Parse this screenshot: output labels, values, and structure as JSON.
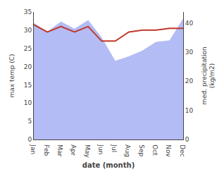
{
  "chart_data": {
    "type": "line",
    "categories": [
      "Jan",
      "Feb",
      "Mar",
      "Apr",
      "May",
      "Jun",
      "Jul",
      "Aug",
      "Sep",
      "Oct",
      "Nov",
      "Dec"
    ],
    "series": [
      {
        "type": "area",
        "axis": "y2",
        "color": "#b3bcf5",
        "values": [
          40.0,
          37.0,
          40.5,
          38.0,
          41.0,
          35.0,
          27.0,
          28.5,
          30.5,
          33.5,
          34.0,
          41.5
        ]
      },
      {
        "type": "line",
        "color": "#c0392b",
        "values": [
          31.5,
          29.5,
          31.0,
          29.5,
          31.0,
          27.0,
          27.0,
          29.5,
          30.0,
          30.0,
          30.5,
          30.5
        ]
      }
    ],
    "xlabel": "date (month)",
    "ylabel": "max temp (C)",
    "y2label": "med. precipitation\n(kg/m2)",
    "ylim": [
      0,
      35
    ],
    "yticks": [
      0,
      5,
      10,
      15,
      20,
      25,
      30,
      35
    ],
    "y2lim": [
      0,
      43.75
    ],
    "y2ticks": [
      0,
      10,
      20,
      30,
      40
    ],
    "grid": false
  }
}
